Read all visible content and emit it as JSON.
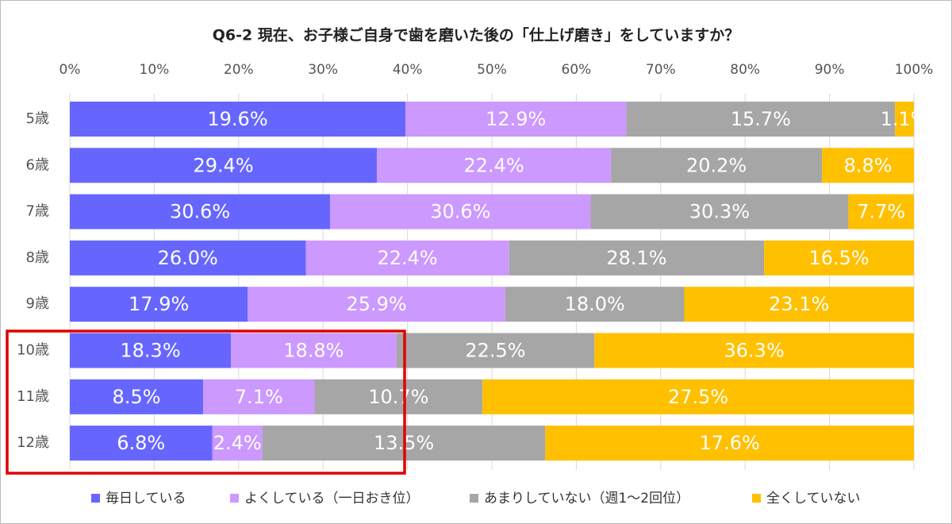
{
  "chart_data": {
    "type": "bar",
    "orientation": "horizontal",
    "stacked": "percent",
    "title": "Q6-2 現在、お子様ご自身で歯を磨いた後の「仕上げ磨き」をしていますか？",
    "categories": [
      "5歳",
      "6歳",
      "7歳",
      "8歳",
      "9歳",
      "10歳",
      "11歳",
      "12歳"
    ],
    "series": [
      {
        "name": "毎日している",
        "color": "#6666ff",
        "values": [
          19.6,
          29.4,
          30.6,
          26.0,
          17.9,
          18.3,
          8.5,
          6.8
        ],
        "value_labels": [
          "19.6%",
          "29.4%",
          "30.6%",
          "26.0%",
          "17.9%",
          "18.3%",
          "8.5%",
          "6.8%"
        ]
      },
      {
        "name": "よくしている（一日おき位）",
        "color": "#cc99ff",
        "values": [
          12.9,
          22.4,
          30.6,
          22.4,
          25.9,
          18.8,
          7.1,
          2.4
        ],
        "value_labels": [
          "12.9%",
          "22.4%",
          "30.6%",
          "22.4%",
          "25.9%",
          "18.8%",
          "7.1%",
          "2.4%"
        ]
      },
      {
        "name": "あまりしていない（週1～2回位）",
        "color": "#a6a6a6",
        "values": [
          15.7,
          20.2,
          30.3,
          28.1,
          18.0,
          22.5,
          10.7,
          13.5
        ],
        "value_labels": [
          "15.7%",
          "20.2%",
          "30.3%",
          "28.1%",
          "18.0%",
          "22.5%",
          "10.7%",
          "13.5%"
        ]
      },
      {
        "name": "全くしていない",
        "color": "#ffc000",
        "values": [
          1.1,
          8.8,
          7.7,
          16.5,
          23.1,
          36.3,
          27.5,
          17.6
        ],
        "value_labels": [
          "1.1%",
          "8.8%",
          "7.7%",
          "16.5%",
          "23.1%",
          "36.3%",
          "27.5%",
          "17.6%"
        ]
      }
    ],
    "xlim": [
      0,
      100
    ],
    "xticks": [
      {
        "value": 0,
        "label": "0%"
      },
      {
        "value": 10,
        "label": "10%"
      },
      {
        "value": 20,
        "label": "20%"
      },
      {
        "value": 30,
        "label": "30%"
      },
      {
        "value": 40,
        "label": "40%"
      },
      {
        "value": 50,
        "label": "50%"
      },
      {
        "value": 60,
        "label": "60%"
      },
      {
        "value": 70,
        "label": "70%"
      },
      {
        "value": 80,
        "label": "80%"
      },
      {
        "value": 90,
        "label": "90%"
      },
      {
        "value": 100,
        "label": "100%"
      }
    ],
    "grid": true,
    "legend": "bottom"
  }
}
